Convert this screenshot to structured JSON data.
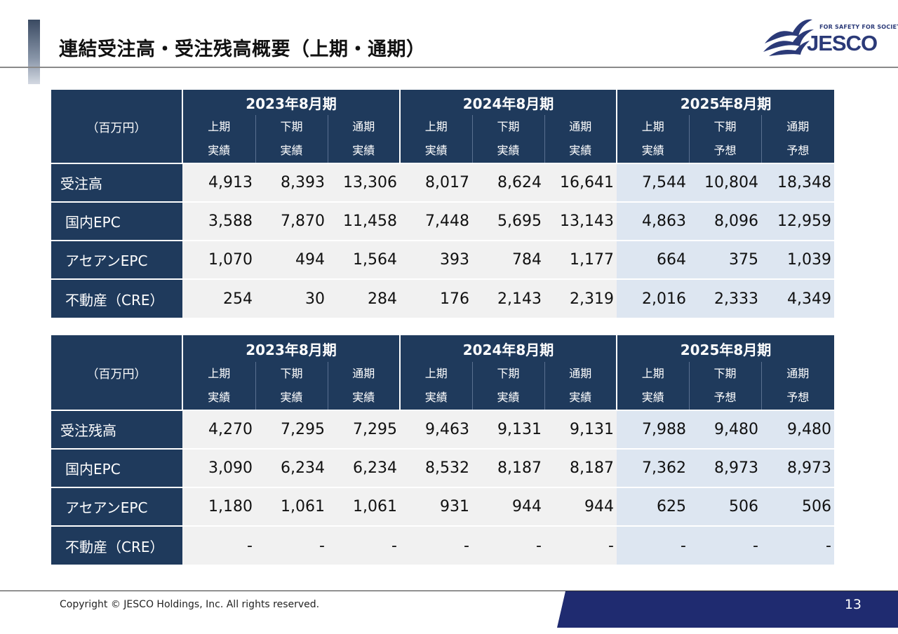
{
  "title": "連結受注高・受注残高概要（上期・通期）",
  "logo": {
    "tagline": "FOR SAFETY FOR SOCIETY",
    "wordmark": "JESCO"
  },
  "colors": {
    "header_navy": "#1f3a5c",
    "forecast_bg": "#dde6f1",
    "actual_bg": "#f1f1f1",
    "footer_band": "#1f2b70"
  },
  "tables": [
    {
      "unit": "（百万円）",
      "years": [
        "2023年8月期",
        "2024年8月期",
        "2025年8月期"
      ],
      "sub_top": [
        "上期",
        "下期",
        "通期",
        "上期",
        "下期",
        "通期",
        "上期",
        "下期",
        "通期"
      ],
      "sub_bottom": [
        "実績",
        "実績",
        "実績",
        "実績",
        "実績",
        "実績",
        "実績",
        "予想",
        "予想"
      ],
      "rows": [
        {
          "label": "受注高",
          "values": [
            "4,913",
            "8,393",
            "13,306",
            "8,017",
            "8,624",
            "16,641",
            "7,544",
            "10,804",
            "18,348"
          ]
        },
        {
          "label": "国内EPC",
          "values": [
            "3,588",
            "7,870",
            "11,458",
            "7,448",
            "5,695",
            "13,143",
            "4,863",
            "8,096",
            "12,959"
          ]
        },
        {
          "label": "アセアンEPC",
          "values": [
            "1,070",
            "494",
            "1,564",
            "393",
            "784",
            "1,177",
            "664",
            "375",
            "1,039"
          ]
        },
        {
          "label": "不動産（CRE）",
          "values": [
            "254",
            "30",
            "284",
            "176",
            "2,143",
            "2,319",
            "2,016",
            "2,333",
            "4,349"
          ]
        }
      ]
    },
    {
      "unit": "（百万円）",
      "years": [
        "2023年8月期",
        "2024年8月期",
        "2025年8月期"
      ],
      "sub_top": [
        "上期",
        "下期",
        "通期",
        "上期",
        "下期",
        "通期",
        "上期",
        "下期",
        "通期"
      ],
      "sub_bottom": [
        "実績",
        "実績",
        "実績",
        "実績",
        "実績",
        "実績",
        "実績",
        "予想",
        "予想"
      ],
      "rows": [
        {
          "label": "受注残高",
          "values": [
            "4,270",
            "7,295",
            "7,295",
            "9,463",
            "9,131",
            "9,131",
            "7,988",
            "9,480",
            "9,480"
          ]
        },
        {
          "label": "国内EPC",
          "values": [
            "3,090",
            "6,234",
            "6,234",
            "8,532",
            "8,187",
            "8,187",
            "7,362",
            "8,973",
            "8,973"
          ]
        },
        {
          "label": "アセアンEPC",
          "values": [
            "1,180",
            "1,061",
            "1,061",
            "931",
            "944",
            "944",
            "625",
            "506",
            "506"
          ]
        },
        {
          "label": "不動産（CRE）",
          "values": [
            "-",
            "-",
            "-",
            "-",
            "-",
            "-",
            "-",
            "-",
            "-"
          ]
        }
      ]
    }
  ],
  "footer": {
    "copyright": "Copyright © JESCO Holdings, Inc.  All rights reserved.",
    "page": "13"
  }
}
